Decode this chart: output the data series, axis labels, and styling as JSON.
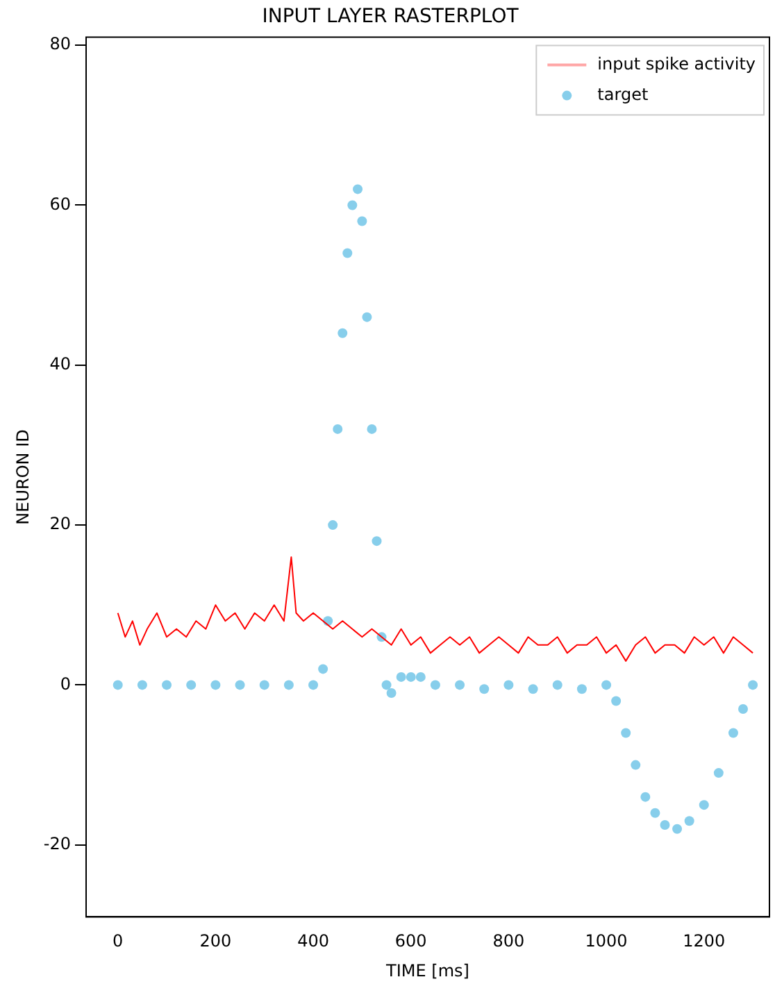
{
  "chart_data": {
    "type": "scatter",
    "title": "INPUT LAYER RASTERPLOT",
    "xlabel": "TIME [ms]",
    "ylabel": "NEURON ID",
    "xlim": [
      -65,
      1334
    ],
    "ylim": [
      -29,
      81
    ],
    "xticks": [
      0,
      200,
      400,
      600,
      800,
      1000,
      1200
    ],
    "yticks": [
      -20,
      0,
      20,
      40,
      60,
      80
    ],
    "grid": false,
    "legend": "top right",
    "series": [
      {
        "name": "input spike activity",
        "type": "line",
        "marker": "none",
        "color": "#ff0000",
        "x": [
          0,
          15,
          30,
          45,
          60,
          80,
          100,
          120,
          140,
          160,
          180,
          200,
          220,
          240,
          260,
          280,
          300,
          320,
          340,
          355,
          365,
          380,
          400,
          420,
          440,
          460,
          480,
          500,
          520,
          540,
          560,
          580,
          600,
          620,
          640,
          660,
          680,
          700,
          720,
          740,
          760,
          780,
          800,
          820,
          840,
          860,
          880,
          900,
          920,
          940,
          960,
          980,
          1000,
          1020,
          1040,
          1060,
          1080,
          1100,
          1120,
          1140,
          1160,
          1180,
          1200,
          1220,
          1240,
          1260,
          1280,
          1300
        ],
        "values": [
          9,
          6,
          8,
          5,
          7,
          9,
          6,
          7,
          6,
          8,
          7,
          10,
          8,
          9,
          7,
          9,
          8,
          10,
          8,
          16,
          9,
          8,
          9,
          8,
          7,
          8,
          7,
          6,
          7,
          6,
          5,
          7,
          5,
          6,
          4,
          5,
          6,
          5,
          6,
          4,
          5,
          6,
          5,
          4,
          6,
          5,
          5,
          6,
          4,
          5,
          5,
          6,
          4,
          5,
          3,
          5,
          6,
          4,
          5,
          5,
          4,
          6,
          5,
          6,
          4,
          6,
          5,
          4
        ]
      },
      {
        "name": "target",
        "type": "scatter",
        "marker": "circle",
        "color": "#87ceeb",
        "x": [
          0,
          50,
          100,
          150,
          200,
          250,
          300,
          350,
          400,
          420,
          430,
          440,
          450,
          460,
          470,
          480,
          491,
          500,
          510,
          520,
          530,
          540,
          550,
          560,
          580,
          600,
          620,
          650,
          700,
          750,
          800,
          850,
          900,
          950,
          1000,
          1020,
          1040,
          1060,
          1080,
          1100,
          1120,
          1145,
          1170,
          1200,
          1230,
          1260,
          1280,
          1300
        ],
        "values": [
          0,
          0,
          0,
          0,
          0,
          0,
          0,
          0,
          0,
          2,
          8,
          20,
          32,
          44,
          54,
          60,
          62,
          58,
          46,
          32,
          18,
          6,
          0,
          -1,
          1,
          1,
          1,
          0,
          0,
          -0.5,
          0,
          -0.5,
          0,
          -0.5,
          0,
          -2,
          -6,
          -10,
          -14,
          -16,
          -17.5,
          -18,
          -17,
          -15,
          -11,
          -6,
          -3,
          0
        ]
      }
    ]
  }
}
